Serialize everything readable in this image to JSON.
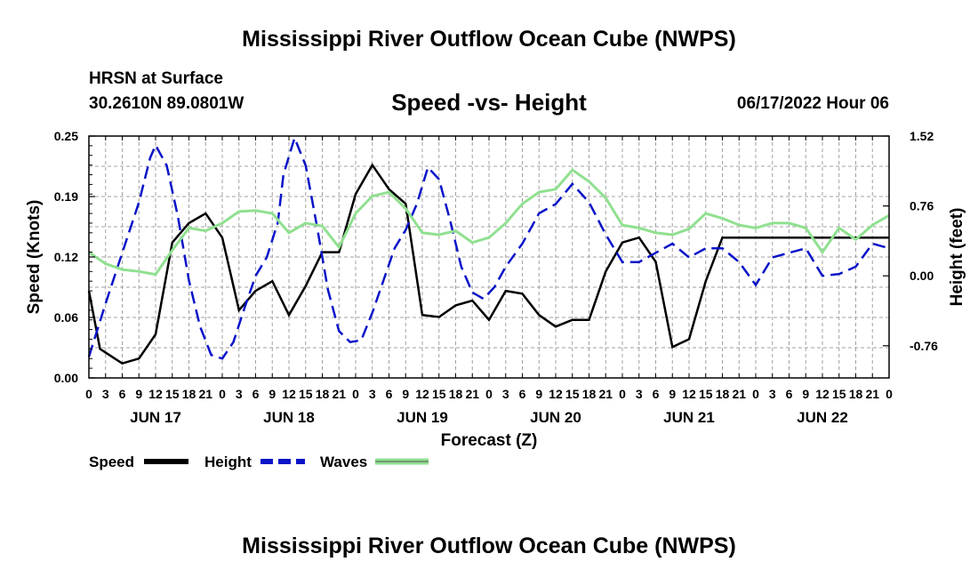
{
  "header": {
    "title": "Mississippi River Outflow Ocean Cube (NWPS)",
    "station": "HRSN at Surface",
    "coords": "30.2610N  89.0801W",
    "chart_title": "Speed -vs- Height",
    "datetime": "06/17/2022 Hour 06"
  },
  "footer": {
    "title": "Mississippi River Outflow Ocean Cube (NWPS)"
  },
  "colors": {
    "speed": "#000000",
    "height": "#0a14c8",
    "waves": "#90e090",
    "grid": "#a0a0a0"
  },
  "chart_data": {
    "type": "line",
    "title": "Speed -vs- Height",
    "xlabel": "Forecast (Z)",
    "ylabel_left": "Speed (Knots)",
    "ylabel_right": "Height (feet)",
    "x_range_hours": [
      0,
      144
    ],
    "x_tick_step_hours": 3,
    "x_tick_labels": [
      "0",
      "3",
      "6",
      "9",
      "12",
      "15",
      "18",
      "21",
      "0",
      "3",
      "6",
      "9",
      "12",
      "15",
      "18",
      "21",
      "0",
      "3",
      "6",
      "9",
      "12",
      "15",
      "18",
      "21",
      "0",
      "3",
      "6",
      "9",
      "12",
      "15",
      "18",
      "21",
      "0",
      "3",
      "6",
      "9",
      "12",
      "15",
      "18",
      "21",
      "0",
      "3",
      "6",
      "9",
      "12",
      "15",
      "18",
      "21",
      "0"
    ],
    "day_labels": [
      {
        "label": "JUN 17",
        "hour": 12
      },
      {
        "label": "JUN 18",
        "hour": 36
      },
      {
        "label": "JUN 19",
        "hour": 60
      },
      {
        "label": "JUN 20",
        "hour": 84
      },
      {
        "label": "JUN 21",
        "hour": 108
      },
      {
        "label": "JUN 22",
        "hour": 132
      }
    ],
    "y_left": {
      "range": [
        0,
        0.25
      ],
      "ticks": [
        "0.00",
        "0.06",
        "0.12",
        "0.19",
        "0.25"
      ],
      "tick_values": [
        0,
        0.0625,
        0.125,
        0.1875,
        0.25
      ]
    },
    "y_right": {
      "range": [
        -1.11,
        1.52
      ],
      "ticks": [
        "-0.76",
        "0.00",
        "0.76",
        "1.52"
      ],
      "tick_values": [
        -0.76,
        0,
        0.76,
        1.52
      ]
    },
    "legend": [
      {
        "name": "Speed",
        "style": "solid"
      },
      {
        "name": "Height",
        "style": "dashed"
      },
      {
        "name": "Waves",
        "style": "solid"
      }
    ],
    "series": [
      {
        "name": "Speed",
        "axis": "left",
        "points": [
          [
            0,
            0.09
          ],
          [
            2,
            0.03
          ],
          [
            6,
            0.015
          ],
          [
            9,
            0.02
          ],
          [
            12,
            0.045
          ],
          [
            15,
            0.14
          ],
          [
            18,
            0.16
          ],
          [
            21,
            0.17
          ],
          [
            24,
            0.145
          ],
          [
            27,
            0.07
          ],
          [
            30,
            0.09
          ],
          [
            33,
            0.1
          ],
          [
            36,
            0.065
          ],
          [
            39,
            0.095
          ],
          [
            42,
            0.13
          ],
          [
            45,
            0.13
          ],
          [
            48,
            0.19
          ],
          [
            51,
            0.22
          ],
          [
            54,
            0.195
          ],
          [
            57,
            0.18
          ],
          [
            60,
            0.065
          ],
          [
            63,
            0.063
          ],
          [
            66,
            0.075
          ],
          [
            69,
            0.08
          ],
          [
            72,
            0.06
          ],
          [
            75,
            0.09
          ],
          [
            78,
            0.087
          ],
          [
            81,
            0.065
          ],
          [
            84,
            0.053
          ],
          [
            87,
            0.06
          ],
          [
            90,
            0.06
          ],
          [
            93,
            0.11
          ],
          [
            96,
            0.14
          ],
          [
            99,
            0.145
          ],
          [
            102,
            0.12
          ],
          [
            105,
            0.032
          ],
          [
            108,
            0.04
          ],
          [
            111,
            0.1
          ],
          [
            114,
            0.145
          ],
          [
            117,
            0.145
          ],
          [
            120,
            0.145
          ],
          [
            123,
            0.145
          ],
          [
            126,
            0.145
          ],
          [
            129,
            0.145
          ],
          [
            132,
            0.145
          ],
          [
            135,
            0.145
          ],
          [
            138,
            0.145
          ],
          [
            141,
            0.145
          ],
          [
            144,
            0.145
          ]
        ]
      },
      {
        "name": "Height",
        "axis": "right",
        "points": [
          [
            0,
            -0.88
          ],
          [
            3,
            -0.3
          ],
          [
            6,
            0.25
          ],
          [
            9,
            0.8
          ],
          [
            11,
            1.28
          ],
          [
            12,
            1.42
          ],
          [
            14,
            1.2
          ],
          [
            16,
            0.65
          ],
          [
            18,
            -0.05
          ],
          [
            20,
            -0.55
          ],
          [
            22,
            -0.86
          ],
          [
            24,
            -0.9
          ],
          [
            26,
            -0.72
          ],
          [
            28,
            -0.35
          ],
          [
            30,
            0.0
          ],
          [
            32,
            0.2
          ],
          [
            34,
            0.58
          ],
          [
            35,
            1.1
          ],
          [
            37,
            1.5
          ],
          [
            39,
            1.2
          ],
          [
            41,
            0.55
          ],
          [
            43,
            -0.15
          ],
          [
            45,
            -0.6
          ],
          [
            47,
            -0.72
          ],
          [
            49,
            -0.7
          ],
          [
            51,
            -0.4
          ],
          [
            53,
            -0.05
          ],
          [
            55,
            0.3
          ],
          [
            57,
            0.5
          ],
          [
            59,
            0.78
          ],
          [
            61,
            1.18
          ],
          [
            63,
            1.05
          ],
          [
            65,
            0.6
          ],
          [
            67,
            0.1
          ],
          [
            69,
            -0.18
          ],
          [
            71,
            -0.25
          ],
          [
            73,
            -0.12
          ],
          [
            75,
            0.1
          ],
          [
            78,
            0.35
          ],
          [
            81,
            0.68
          ],
          [
            84,
            0.78
          ],
          [
            87,
            1.0
          ],
          [
            90,
            0.8
          ],
          [
            93,
            0.45
          ],
          [
            96,
            0.15
          ],
          [
            99,
            0.15
          ],
          [
            102,
            0.25
          ],
          [
            105,
            0.35
          ],
          [
            108,
            0.2
          ],
          [
            111,
            0.3
          ],
          [
            114,
            0.3
          ],
          [
            117,
            0.15
          ],
          [
            120,
            -0.1
          ],
          [
            123,
            0.2
          ],
          [
            126,
            0.25
          ],
          [
            129,
            0.3
          ],
          [
            132,
            0.0
          ],
          [
            135,
            0.02
          ],
          [
            138,
            0.1
          ],
          [
            141,
            0.35
          ],
          [
            144,
            0.3
          ]
        ]
      },
      {
        "name": "Waves",
        "axis": "left",
        "points": [
          [
            0,
            0.13
          ],
          [
            3,
            0.118
          ],
          [
            6,
            0.112
          ],
          [
            9,
            0.11
          ],
          [
            12,
            0.107
          ],
          [
            15,
            0.132
          ],
          [
            18,
            0.155
          ],
          [
            21,
            0.152
          ],
          [
            24,
            0.16
          ],
          [
            27,
            0.172
          ],
          [
            30,
            0.173
          ],
          [
            33,
            0.17
          ],
          [
            36,
            0.15
          ],
          [
            39,
            0.16
          ],
          [
            42,
            0.157
          ],
          [
            45,
            0.135
          ],
          [
            48,
            0.17
          ],
          [
            51,
            0.188
          ],
          [
            54,
            0.192
          ],
          [
            57,
            0.175
          ],
          [
            60,
            0.15
          ],
          [
            63,
            0.148
          ],
          [
            66,
            0.152
          ],
          [
            69,
            0.14
          ],
          [
            72,
            0.145
          ],
          [
            75,
            0.16
          ],
          [
            78,
            0.18
          ],
          [
            81,
            0.192
          ],
          [
            84,
            0.195
          ],
          [
            87,
            0.215
          ],
          [
            90,
            0.203
          ],
          [
            93,
            0.186
          ],
          [
            96,
            0.158
          ],
          [
            99,
            0.155
          ],
          [
            102,
            0.15
          ],
          [
            105,
            0.148
          ],
          [
            108,
            0.154
          ],
          [
            111,
            0.17
          ],
          [
            114,
            0.165
          ],
          [
            117,
            0.158
          ],
          [
            120,
            0.155
          ],
          [
            123,
            0.16
          ],
          [
            126,
            0.16
          ],
          [
            129,
            0.155
          ],
          [
            132,
            0.13
          ],
          [
            135,
            0.155
          ],
          [
            138,
            0.143
          ],
          [
            141,
            0.158
          ],
          [
            144,
            0.168
          ]
        ]
      }
    ]
  }
}
